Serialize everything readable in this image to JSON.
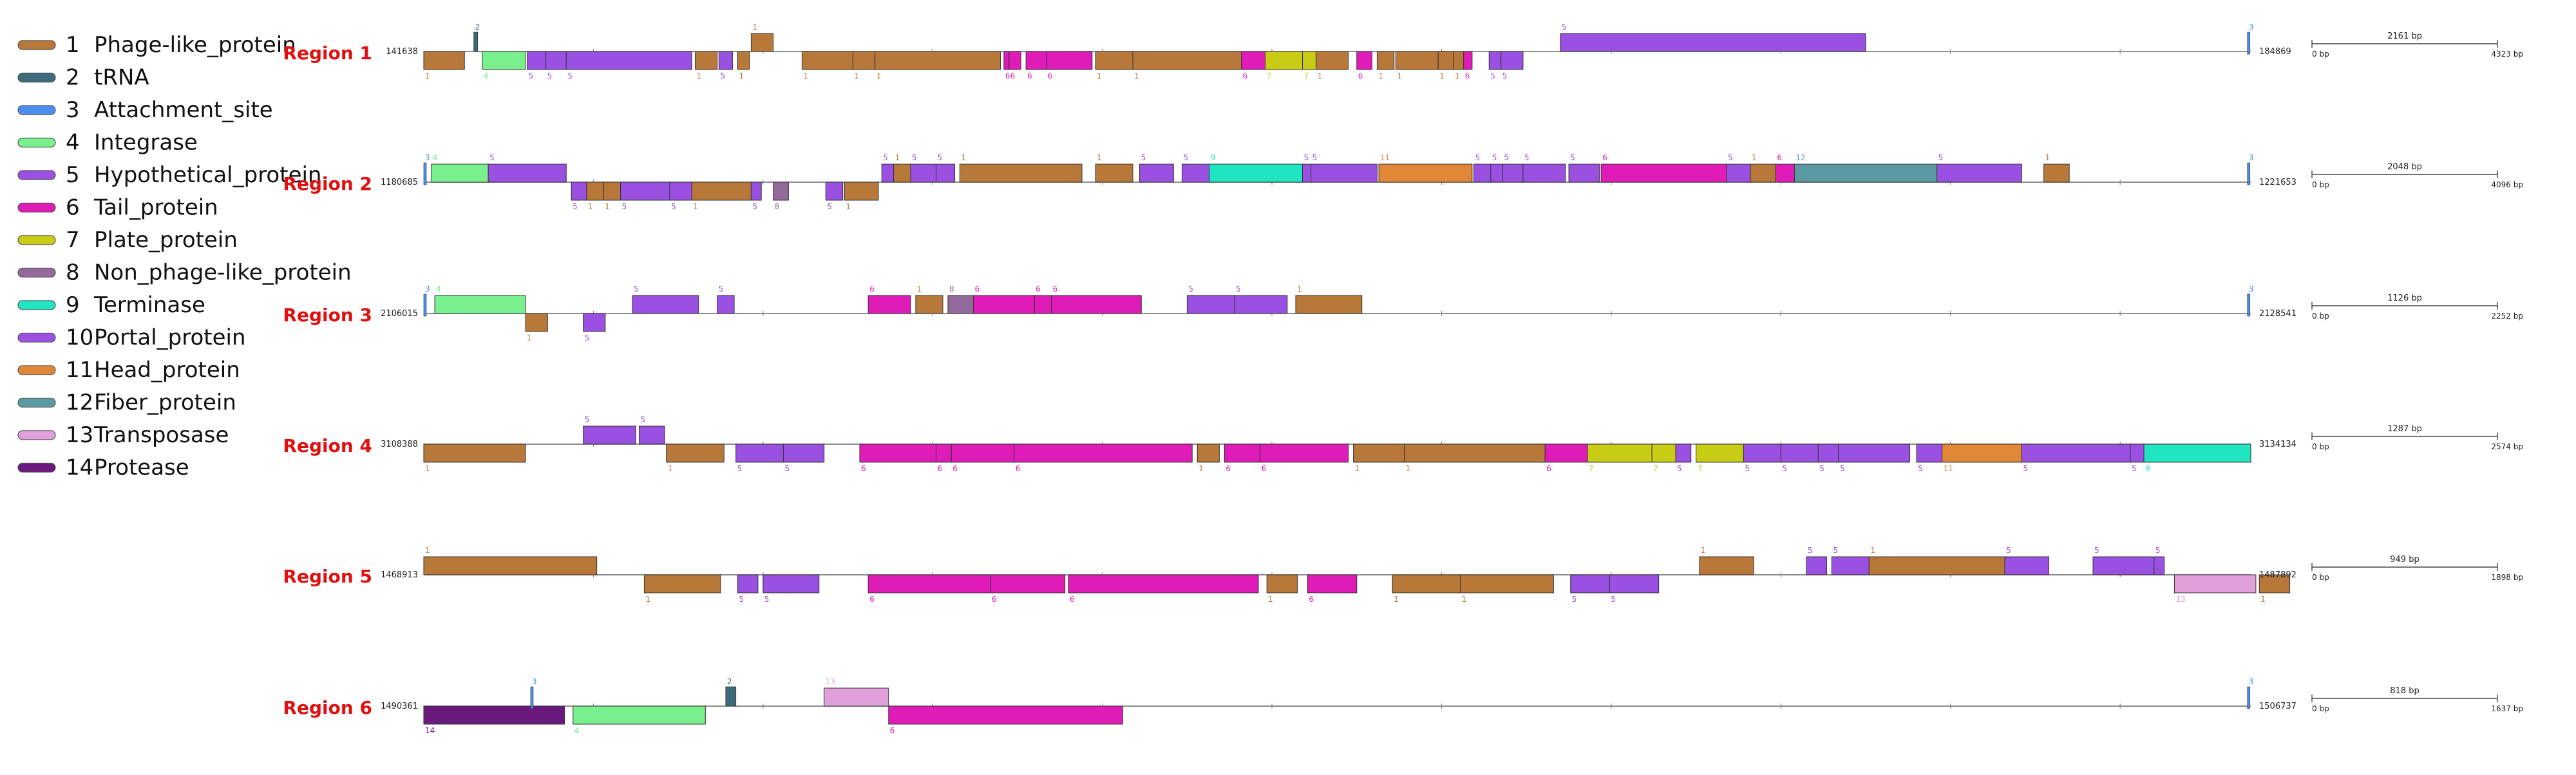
{
  "legend": [
    {
      "num": "1",
      "label": "Phage-like_protein",
      "color": "#b8783a"
    },
    {
      "num": "2",
      "label": "tRNA",
      "color": "#3d6b7c"
    },
    {
      "num": "3",
      "label": "Attachment_site",
      "color": "#4a8ff0"
    },
    {
      "num": "4",
      "label": "Integrase",
      "color": "#79ef8d"
    },
    {
      "num": "5",
      "label": "Hypothetical_protein",
      "color": "#9a50e0"
    },
    {
      "num": "6",
      "label": "Tail_protein",
      "color": "#e01cb8"
    },
    {
      "num": "7",
      "label": "Plate_protein",
      "color": "#c8cc14"
    },
    {
      "num": "8",
      "label": "Non_phage-like_protein",
      "color": "#946a9c"
    },
    {
      "num": "9",
      "label": "Terminase",
      "color": "#1fe6c0"
    },
    {
      "num": "10",
      "label": "Portal_protein",
      "color": "#9a50e0"
    },
    {
      "num": "11",
      "label": "Head_protein",
      "color": "#e08838"
    },
    {
      "num": "12",
      "label": "Fiber_protein",
      "color": "#5b9aa2"
    },
    {
      "num": "13",
      "label": "Transposase",
      "color": "#e0a0dc"
    },
    {
      "num": "14",
      "label": "Protease",
      "color": "#6a1a7e"
    }
  ],
  "regions": [
    {
      "name": "Region 1",
      "start": "141638",
      "end": "184869",
      "scale_label": "2161 bp",
      "scale_min": "0 bp",
      "scale_max": "4323 bp",
      "length": 43231,
      "genes": [
        {
          "cls": 1,
          "s": 0,
          "e": 2400,
          "strand": "-"
        },
        {
          "cls": 2,
          "s": 2950,
          "e": 3100,
          "strand": "+",
          "label": "2"
        },
        {
          "cls": 4,
          "s": 3450,
          "e": 6000,
          "strand": "-"
        },
        {
          "cls": 5,
          "s": 6100,
          "e": 7200,
          "strand": "-"
        },
        {
          "cls": 5,
          "s": 7200,
          "e": 8400,
          "strand": "-"
        },
        {
          "cls": 5,
          "s": 8400,
          "e": 15800,
          "strand": "-"
        },
        {
          "cls": 1,
          "s": 16000,
          "e": 17300,
          "strand": "-"
        },
        {
          "cls": 5,
          "s": 17400,
          "e": 18200,
          "strand": "-"
        },
        {
          "cls": 1,
          "s": 18500,
          "e": 19200,
          "strand": "-"
        },
        {
          "cls": 1,
          "s": 19300,
          "e": 20600,
          "strand": "+"
        },
        {
          "cls": 1,
          "s": 22300,
          "e": 25300,
          "strand": "-"
        },
        {
          "cls": 1,
          "s": 25300,
          "e": 26600,
          "strand": "-"
        },
        {
          "cls": 1,
          "s": 26600,
          "e": 34000,
          "strand": "-"
        },
        {
          "cls": 6,
          "s": 34200,
          "e": 34500,
          "strand": "-"
        },
        {
          "cls": 6,
          "s": 34500,
          "e": 35200,
          "strand": "-"
        },
        {
          "cls": 6,
          "s": 35500,
          "e": 36700,
          "strand": "-"
        },
        {
          "cls": 6,
          "s": 36700,
          "e": 39400,
          "strand": "-"
        },
        {
          "cls": 1,
          "s": 39600,
          "e": 41800,
          "strand": "-"
        },
        {
          "cls": 1,
          "s": 41800,
          "e": 48200,
          "strand": "-"
        },
        {
          "cls": 6,
          "s": 48200,
          "e": 49600,
          "strand": "-"
        },
        {
          "cls": 7,
          "s": 49600,
          "e": 51800,
          "strand": "-"
        },
        {
          "cls": 7,
          "s": 51800,
          "e": 52600,
          "strand": "-"
        },
        {
          "cls": 1,
          "s": 52600,
          "e": 54500,
          "strand": "-"
        },
        {
          "cls": 6,
          "s": 55000,
          "e": 55900,
          "strand": "-"
        },
        {
          "cls": 1,
          "s": 56200,
          "e": 57200,
          "strand": "-"
        },
        {
          "cls": 1,
          "s": 57300,
          "e": 59800,
          "strand": "-"
        },
        {
          "cls": 1,
          "s": 59800,
          "e": 60700,
          "strand": "-"
        },
        {
          "cls": 1,
          "s": 60700,
          "e": 61300,
          "strand": "-"
        },
        {
          "cls": 6,
          "s": 61300,
          "e": 61800,
          "strand": "-"
        },
        {
          "cls": 5,
          "s": 62800,
          "e": 63500,
          "strand": "-"
        },
        {
          "cls": 5,
          "s": 63500,
          "e": 64800,
          "strand": "-"
        },
        {
          "cls": 5,
          "s": 67000,
          "e": 85000,
          "strand": "+"
        },
        {
          "cls": 3,
          "s": 107500,
          "e": 107700,
          "strand": "+",
          "label": "3"
        }
      ]
    },
    {
      "name": "Region 2",
      "start": "1180685",
      "end": "1221653",
      "scale_label": "2048 bp",
      "scale_min": "0 bp",
      "scale_max": "4096 bp",
      "length": 40968,
      "genes": [
        {
          "cls": 3,
          "s": 0,
          "e": 150,
          "strand": "+",
          "label": "3"
        },
        {
          "cls": 4,
          "s": 450,
          "e": 3800,
          "strand": "+"
        },
        {
          "cls": 5,
          "s": 3800,
          "e": 8400,
          "strand": "+"
        },
        {
          "cls": 5,
          "s": 8700,
          "e": 9600,
          "strand": "-"
        },
        {
          "cls": 1,
          "s": 9600,
          "e": 10600,
          "strand": "-"
        },
        {
          "cls": 1,
          "s": 10600,
          "e": 11600,
          "strand": "-"
        },
        {
          "cls": 5,
          "s": 11600,
          "e": 14500,
          "strand": "-"
        },
        {
          "cls": 5,
          "s": 14500,
          "e": 15800,
          "strand": "-"
        },
        {
          "cls": 1,
          "s": 15800,
          "e": 19300,
          "strand": "-"
        },
        {
          "cls": 5,
          "s": 19300,
          "e": 19900,
          "strand": "-"
        },
        {
          "cls": 8,
          "s": 20600,
          "e": 21500,
          "strand": "-"
        },
        {
          "cls": 5,
          "s": 23700,
          "e": 24700,
          "strand": "-"
        },
        {
          "cls": 1,
          "s": 24800,
          "e": 26800,
          "strand": "-"
        },
        {
          "cls": 5,
          "s": 27000,
          "e": 27700,
          "strand": "+"
        },
        {
          "cls": 1,
          "s": 27700,
          "e": 28700,
          "strand": "+"
        },
        {
          "cls": 5,
          "s": 28700,
          "e": 30200,
          "strand": "+"
        },
        {
          "cls": 5,
          "s": 30200,
          "e": 31300,
          "strand": "+"
        },
        {
          "cls": 1,
          "s": 31600,
          "e": 38800,
          "strand": "+"
        },
        {
          "cls": 1,
          "s": 39600,
          "e": 41800,
          "strand": "+"
        },
        {
          "cls": 5,
          "s": 42200,
          "e": 44200,
          "strand": "+"
        },
        {
          "cls": 5,
          "s": 44700,
          "e": 46300,
          "strand": "+"
        },
        {
          "cls": 9,
          "s": 46300,
          "e": 51800,
          "strand": "+"
        },
        {
          "cls": 5,
          "s": 51800,
          "e": 52300,
          "strand": "+"
        },
        {
          "cls": 5,
          "s": 52300,
          "e": 56200,
          "strand": "+"
        },
        {
          "cls": 11,
          "s": 56300,
          "e": 61800,
          "strand": "+"
        },
        {
          "cls": 5,
          "s": 61900,
          "e": 62900,
          "strand": "+"
        },
        {
          "cls": 5,
          "s": 62900,
          "e": 63600,
          "strand": "+"
        },
        {
          "cls": 5,
          "s": 63600,
          "e": 64800,
          "strand": "+"
        },
        {
          "cls": 5,
          "s": 64800,
          "e": 67300,
          "strand": "+"
        },
        {
          "cls": 5,
          "s": 67500,
          "e": 69300,
          "strand": "+"
        },
        {
          "cls": 6,
          "s": 69400,
          "e": 76800,
          "strand": "+"
        },
        {
          "cls": 5,
          "s": 76800,
          "e": 78200,
          "strand": "+"
        },
        {
          "cls": 1,
          "s": 78200,
          "e": 79700,
          "strand": "+"
        },
        {
          "cls": 6,
          "s": 79700,
          "e": 80800,
          "strand": "+"
        },
        {
          "cls": 12,
          "s": 80800,
          "e": 89200,
          "strand": "+"
        },
        {
          "cls": 5,
          "s": 89200,
          "e": 94200,
          "strand": "+"
        },
        {
          "cls": 1,
          "s": 95500,
          "e": 97000,
          "strand": "+"
        },
        {
          "cls": 3,
          "s": 107500,
          "e": 107700,
          "strand": "+",
          "label": "3"
        }
      ]
    },
    {
      "name": "Region 3",
      "start": "2106015",
      "end": "2128541",
      "scale_label": "1126 bp",
      "scale_min": "0 bp",
      "scale_max": "2252 bp",
      "length": 22526,
      "genes": [
        {
          "cls": 3,
          "s": 0,
          "e": 150,
          "strand": "+",
          "label": "3"
        },
        {
          "cls": 4,
          "s": 650,
          "e": 6000,
          "strand": "+"
        },
        {
          "cls": 1,
          "s": 6000,
          "e": 7300,
          "strand": "-"
        },
        {
          "cls": 5,
          "s": 9400,
          "e": 10700,
          "strand": "-"
        },
        {
          "cls": 5,
          "s": 12300,
          "e": 16200,
          "strand": "+"
        },
        {
          "cls": 5,
          "s": 17300,
          "e": 18300,
          "strand": "+"
        },
        {
          "cls": 6,
          "s": 26200,
          "e": 28700,
          "strand": "+"
        },
        {
          "cls": 1,
          "s": 29000,
          "e": 30600,
          "strand": "+"
        },
        {
          "cls": 8,
          "s": 30900,
          "e": 32400,
          "strand": "+"
        },
        {
          "cls": 6,
          "s": 32400,
          "e": 36000,
          "strand": "+"
        },
        {
          "cls": 6,
          "s": 36000,
          "e": 37000,
          "strand": "+"
        },
        {
          "cls": 6,
          "s": 37000,
          "e": 42300,
          "strand": "+"
        },
        {
          "cls": 5,
          "s": 45000,
          "e": 47800,
          "strand": "+"
        },
        {
          "cls": 5,
          "s": 47800,
          "e": 50900,
          "strand": "+"
        },
        {
          "cls": 1,
          "s": 51400,
          "e": 55300,
          "strand": "+"
        },
        {
          "cls": 3,
          "s": 107500,
          "e": 107700,
          "strand": "+",
          "label": "3"
        }
      ]
    },
    {
      "name": "Region 4",
      "start": "3108388",
      "end": "3134134",
      "scale_label": "1287 bp",
      "scale_min": "0 bp",
      "scale_max": "2574 bp",
      "length": 25746,
      "genes": [
        {
          "cls": 1,
          "s": 0,
          "e": 6000,
          "strand": "-"
        },
        {
          "cls": 5,
          "s": 9400,
          "e": 12500,
          "strand": "+"
        },
        {
          "cls": 5,
          "s": 12700,
          "e": 14200,
          "strand": "+"
        },
        {
          "cls": 1,
          "s": 14300,
          "e": 17700,
          "strand": "-"
        },
        {
          "cls": 5,
          "s": 18400,
          "e": 21200,
          "strand": "-"
        },
        {
          "cls": 5,
          "s": 21200,
          "e": 23600,
          "strand": "-"
        },
        {
          "cls": 6,
          "s": 25700,
          "e": 30200,
          "strand": "-"
        },
        {
          "cls": 6,
          "s": 30200,
          "e": 31100,
          "strand": "-"
        },
        {
          "cls": 6,
          "s": 31100,
          "e": 34800,
          "strand": "-"
        },
        {
          "cls": 6,
          "s": 34800,
          "e": 45300,
          "strand": "-"
        },
        {
          "cls": 1,
          "s": 45600,
          "e": 46900,
          "strand": "-"
        },
        {
          "cls": 6,
          "s": 47200,
          "e": 49300,
          "strand": "-"
        },
        {
          "cls": 6,
          "s": 49300,
          "e": 54500,
          "strand": "-"
        },
        {
          "cls": 1,
          "s": 54800,
          "e": 57800,
          "strand": "-"
        },
        {
          "cls": 1,
          "s": 57800,
          "e": 66100,
          "strand": "-"
        },
        {
          "cls": 6,
          "s": 66100,
          "e": 68600,
          "strand": "-"
        },
        {
          "cls": 7,
          "s": 68600,
          "e": 72400,
          "strand": "-"
        },
        {
          "cls": 7,
          "s": 72400,
          "e": 73800,
          "strand": "-"
        },
        {
          "cls": 5,
          "s": 73800,
          "e": 74700,
          "strand": "-"
        },
        {
          "cls": 7,
          "s": 75000,
          "e": 77800,
          "strand": "-"
        },
        {
          "cls": 5,
          "s": 77800,
          "e": 80000,
          "strand": "-"
        },
        {
          "cls": 5,
          "s": 80000,
          "e": 82200,
          "strand": "-"
        },
        {
          "cls": 5,
          "s": 82200,
          "e": 83400,
          "strand": "-"
        },
        {
          "cls": 5,
          "s": 83400,
          "e": 87600,
          "strand": "-"
        },
        {
          "cls": 5,
          "s": 88000,
          "e": 89500,
          "strand": "-"
        },
        {
          "cls": 11,
          "s": 89500,
          "e": 94200,
          "strand": "-"
        },
        {
          "cls": 5,
          "s": 94200,
          "e": 100600,
          "strand": "-"
        },
        {
          "cls": 5,
          "s": 100600,
          "e": 101400,
          "strand": "-"
        },
        {
          "cls": 9,
          "s": 101400,
          "e": 107700,
          "strand": "-"
        }
      ]
    },
    {
      "name": "Region 5",
      "start": "1468913",
      "end": "1487892",
      "scale_label": "949 bp",
      "scale_min": "0 bp",
      "scale_max": "1898 bp",
      "length": 18979,
      "genes": [
        {
          "cls": 1,
          "s": 0,
          "e": 10200,
          "strand": "+"
        },
        {
          "cls": 1,
          "s": 13000,
          "e": 17500,
          "strand": "-"
        },
        {
          "cls": 5,
          "s": 18500,
          "e": 19700,
          "strand": "-"
        },
        {
          "cls": 5,
          "s": 20000,
          "e": 23300,
          "strand": "-"
        },
        {
          "cls": 6,
          "s": 26200,
          "e": 33400,
          "strand": "-"
        },
        {
          "cls": 6,
          "s": 33400,
          "e": 37800,
          "strand": "-"
        },
        {
          "cls": 6,
          "s": 38000,
          "e": 49200,
          "strand": "-"
        },
        {
          "cls": 1,
          "s": 49700,
          "e": 51500,
          "strand": "-"
        },
        {
          "cls": 6,
          "s": 52100,
          "e": 55000,
          "strand": "-"
        },
        {
          "cls": 1,
          "s": 57100,
          "e": 61100,
          "strand": "-"
        },
        {
          "cls": 1,
          "s": 61100,
          "e": 66600,
          "strand": "-"
        },
        {
          "cls": 5,
          "s": 67600,
          "e": 69900,
          "strand": "-"
        },
        {
          "cls": 5,
          "s": 69900,
          "e": 72800,
          "strand": "-"
        },
        {
          "cls": 1,
          "s": 75200,
          "e": 78400,
          "strand": "+"
        },
        {
          "cls": 5,
          "s": 81500,
          "e": 82700,
          "strand": "+"
        },
        {
          "cls": 5,
          "s": 83000,
          "e": 85200,
          "strand": "+"
        },
        {
          "cls": 1,
          "s": 85200,
          "e": 93200,
          "strand": "+"
        },
        {
          "cls": 5,
          "s": 93200,
          "e": 95800,
          "strand": "+"
        },
        {
          "cls": 5,
          "s": 98400,
          "e": 102000,
          "strand": "+"
        },
        {
          "cls": 5,
          "s": 102000,
          "e": 102600,
          "strand": "+"
        },
        {
          "cls": 13,
          "s": 103200,
          "e": 108000,
          "strand": "-"
        },
        {
          "cls": 1,
          "s": 108200,
          "e": 110000,
          "strand": "-"
        }
      ]
    },
    {
      "name": "Region 6",
      "start": "1490361",
      "end": "1506737",
      "scale_label": "818 bp",
      "scale_min": "0 bp",
      "scale_max": "1637 bp",
      "length": 16376,
      "genes": [
        {
          "cls": 14,
          "s": 0,
          "e": 8300,
          "strand": "-"
        },
        {
          "cls": 3,
          "s": 6300,
          "e": 6450,
          "strand": "+",
          "label": "3"
        },
        {
          "cls": 4,
          "s": 8800,
          "e": 16600,
          "strand": "-"
        },
        {
          "cls": 2,
          "s": 17800,
          "e": 18400,
          "strand": "+"
        },
        {
          "cls": 13,
          "s": 23600,
          "e": 27400,
          "strand": "+"
        },
        {
          "cls": 6,
          "s": 27400,
          "e": 41200,
          "strand": "-"
        },
        {
          "cls": 3,
          "s": 107500,
          "e": 107700,
          "strand": "+",
          "label": "3"
        }
      ]
    }
  ]
}
